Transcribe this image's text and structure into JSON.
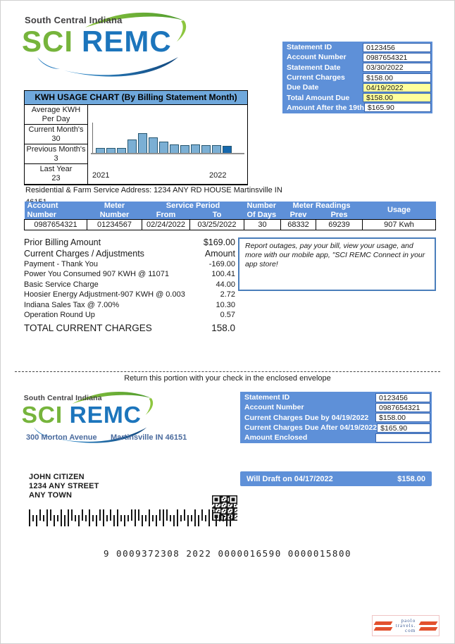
{
  "page": {
    "return_notice": "Return this portion with your check in the enclosed envelope",
    "micr_line": "9 0009372308 2022 0000016590 0000015800"
  },
  "logo": {
    "tagline": "South Central Indiana",
    "name_green": "SCI",
    "name_blue": "REMC"
  },
  "colors": {
    "header_blue": "#5e90d8",
    "value_border_blue": "#3a66ad",
    "highlight_yellow": "#ffff9c",
    "chart_title_bg": "#6fa8dc",
    "logo_green": "#76b43c",
    "logo_blue": "#1c75bc",
    "watermark_orange": "#e2512e"
  },
  "statement_box": {
    "rows": [
      {
        "label": "Statement ID",
        "value": "0123456",
        "highlight": false
      },
      {
        "label": "Account Number",
        "value": "0987654321",
        "highlight": false
      },
      {
        "label": "Statement Date",
        "value": "03/30/2022",
        "highlight": false
      },
      {
        "label": "Current Charges",
        "value": "$158.00",
        "highlight": false
      },
      {
        "label": "Due Date",
        "value": "04/19/2022",
        "highlight": true
      },
      {
        "label": "Total Amount Due",
        "value": "$158.00",
        "highlight": true
      },
      {
        "label": "Amount After the 19th",
        "value": "$165.90",
        "highlight": false
      }
    ]
  },
  "chart_data": {
    "type": "bar",
    "title": "KWH USAGE CHART (By Billing Statement Month)",
    "values": [
      6,
      6,
      6,
      16,
      23,
      18,
      13,
      10,
      9,
      10,
      9,
      9,
      8
    ],
    "ylim": [
      0,
      25
    ],
    "x_tick_labels": [
      "2021",
      "2022"
    ],
    "bar_fill": "#7bafd4",
    "bar_fill_last": "#1668ad",
    "bar_stroke": "#27566f",
    "side_stats": [
      {
        "line1": "Average KWH",
        "line2": "Per Day"
      },
      {
        "line1": "Current Month's",
        "line2": "30"
      },
      {
        "line1": "Previous Month's",
        "line2": "3"
      },
      {
        "line1": "Last Year",
        "line2": "23"
      }
    ]
  },
  "service_address": {
    "line1": "Residential & Farm Service Address: 1234 ANY RD HOUSE Martinsville IN",
    "line2": "46151"
  },
  "usage_table": {
    "account_h1": "Account",
    "account_h2": "Number",
    "meter_h1": "Meter",
    "meter_h2": "Number",
    "service_period": "Service Period",
    "from": "From",
    "to": "To",
    "days_h1": "Number",
    "days_h2": "Of Days",
    "readings": "Meter Readings",
    "prev": "Prev",
    "pres": "Pres",
    "usage": "Usage",
    "row": {
      "account": "0987654321",
      "meter": "01234567",
      "from": "02/24/2022",
      "to": "03/25/2022",
      "days": "30",
      "prev": "68332",
      "pres": "69239",
      "usage": "907 Kwh"
    }
  },
  "charges": {
    "prior_label": "Prior Billing Amount",
    "prior_amount": "$169.00",
    "adjust_label": "Current Charges / Adjustments",
    "amount_header": "Amount",
    "items": [
      {
        "label": "Payment - Thank You",
        "amount": "-169.00"
      },
      {
        "label": "Power You Consumed 907 KWH @ 11071",
        "amount": "100.41"
      },
      {
        "label": "Basic Service Charge",
        "amount": "44.00"
      },
      {
        "label": "Hoosier Energy Adjustment-907 KWH @ 0.003",
        "amount": "2.72"
      },
      {
        "label": "Indiana Sales Tax @ 7.00%",
        "amount": "10.30"
      },
      {
        "label": "Operation Round Up",
        "amount": "0.57"
      }
    ],
    "total_label": "TOTAL CURRENT CHARGES",
    "total_amount": "158.0"
  },
  "app_notice": "Report outages, pay your bill, view your usage, and more with our mobile app, \"SCI REMC Connect in your app store!",
  "remit": {
    "company_street": "300 Morton Avenue",
    "company_city": "Martinsville IN 46151",
    "box_rows": [
      {
        "label": "Statement ID",
        "value": "0123456"
      },
      {
        "label": "Account Number",
        "value": "0987654321"
      },
      {
        "label": "Current Charges Due by 04/19/2022",
        "value": "$158.00"
      },
      {
        "label": "Current Charges Due After 04/19/2022",
        "value": "$165.90"
      },
      {
        "label": "Amount Enclosed",
        "value": ""
      }
    ],
    "customer_line1": "JOHN CITIZEN",
    "customer_line2": "1234 ANY STREET",
    "customer_line3": "ANY TOWN",
    "draft_label": "Will Draft on 04/17/2022",
    "draft_amount": "$158.00"
  },
  "watermark": {
    "line1": "paolo",
    "line2": "travels.",
    "line3": "com"
  },
  "barcode": {
    "pattern": "FTDATFADTFDFATDATFTDAFTADFTDTAFADTFTDAFATDFTADTFDATFADTTFDA"
  }
}
